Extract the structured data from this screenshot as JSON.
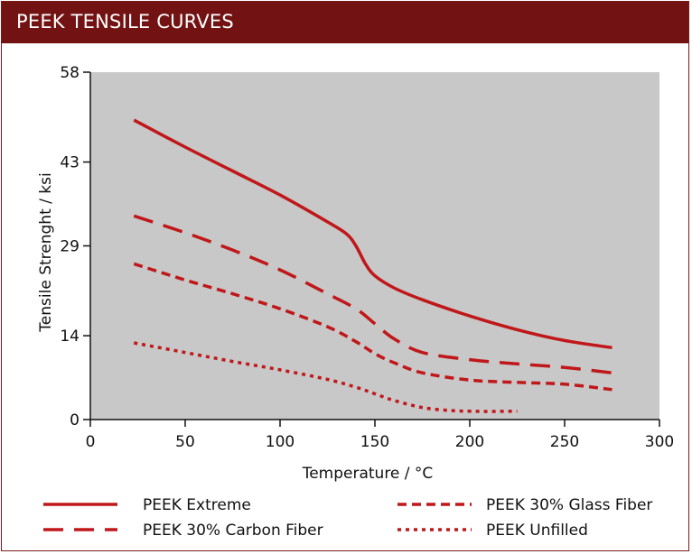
{
  "header": {
    "title": "PEEK TENSILE CURVES"
  },
  "colors": {
    "title_bg": "#731213",
    "plot_bg": "#c8c8c8",
    "series": "#c0181a"
  },
  "chart_data": {
    "type": "line",
    "title": "PEEK TENSILE CURVES",
    "xlabel": "Temperature / °C",
    "ylabel": "Tensile Strenght / ksi",
    "xlim": [
      0,
      300
    ],
    "ylim": [
      0,
      58
    ],
    "xticks": [
      0,
      50,
      100,
      150,
      200,
      250,
      300
    ],
    "yticks": [
      0,
      14,
      29,
      43,
      58
    ],
    "grid": false,
    "legend_position": "bottom",
    "series": [
      {
        "name": "PEEK Extreme",
        "style": "solid",
        "x": [
          23,
          50,
          75,
          100,
          125,
          135,
          140,
          145,
          150,
          160,
          175,
          200,
          225,
          250,
          275
        ],
        "y": [
          50,
          45.5,
          41.5,
          37.5,
          33,
          31,
          29,
          26,
          24,
          22,
          20,
          17.3,
          15,
          13.2,
          12
        ]
      },
      {
        "name": "PEEK 30% Carbon Fiber",
        "style": "dash",
        "x": [
          23,
          50,
          75,
          100,
          125,
          140,
          150,
          160,
          175,
          200,
          225,
          250,
          275
        ],
        "y": [
          34,
          31.2,
          28.3,
          25,
          21,
          18.5,
          16,
          13.5,
          11.2,
          10,
          9.3,
          8.7,
          7.8
        ]
      },
      {
        "name": "PEEK 30% Glass Fiber",
        "style": "shortdash",
        "x": [
          23,
          50,
          75,
          100,
          125,
          140,
          150,
          160,
          175,
          200,
          225,
          250,
          275
        ],
        "y": [
          26,
          23.3,
          21,
          18.5,
          15.5,
          13,
          11,
          9.5,
          7.8,
          6.6,
          6.2,
          5.9,
          5
        ]
      },
      {
        "name": "PEEK Unfilled",
        "style": "dot",
        "x": [
          23,
          50,
          75,
          100,
          125,
          140,
          150,
          160,
          175,
          190,
          200,
          210,
          225
        ],
        "y": [
          12.8,
          11.2,
          9.7,
          8.3,
          6.7,
          5.4,
          4.3,
          3.2,
          2,
          1.5,
          1.4,
          1.35,
          1.4
        ]
      }
    ]
  }
}
